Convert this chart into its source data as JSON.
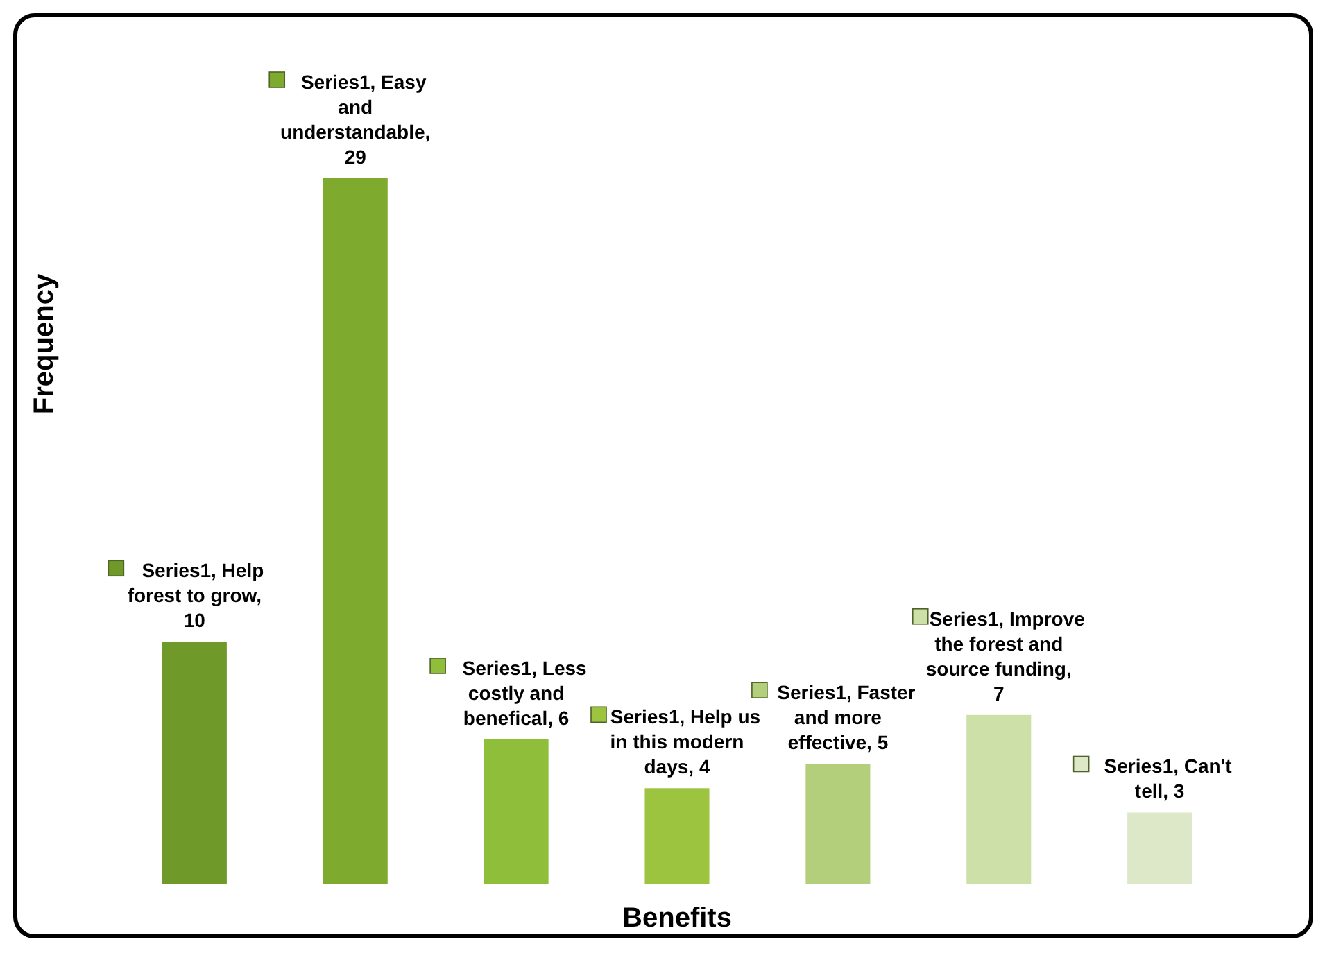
{
  "chart_data": {
    "type": "bar",
    "xlabel": "Benefits",
    "ylabel": "Frequency",
    "categories": [
      null,
      null,
      null,
      null,
      null,
      null,
      null
    ],
    "series": [
      {
        "values": [
          10,
          29,
          6,
          4,
          5,
          7,
          3
        ],
        "colors": [
          "#6f9a2a",
          "#7eaa2e",
          "#8fbf3a",
          "#9dc43f",
          "#b3cf7c",
          "#cde0a8",
          "#dde8c8"
        ],
        "value_labels": [
          "Series1, Help forest to grow, 10",
          "Series1, Easy and understandable, 29",
          "Series1, Less costly and benefical, 6",
          "Series1, Help us in this modern days, 4",
          "Series1, Faster and more effective, 5",
          "Series1, Improve the forest and source funding, 7",
          "Series1, Can't tell, 3"
        ]
      }
    ]
  }
}
